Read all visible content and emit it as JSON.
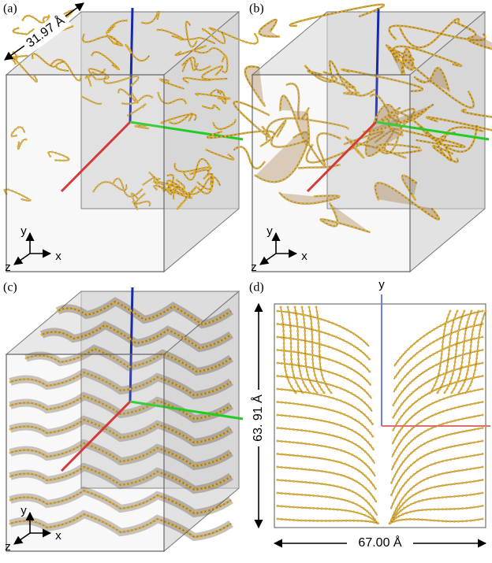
{
  "panels": [
    {
      "label": "(a)",
      "dimension": "31.97 Å",
      "axes": {
        "x": "x",
        "y": "y",
        "z": "z"
      }
    },
    {
      "label": "(b)",
      "axes": {
        "x": "x",
        "y": "y",
        "z": "z"
      }
    },
    {
      "label": "(c)",
      "axes": {
        "x": "x",
        "y": "y",
        "z": "z"
      }
    },
    {
      "label": "(d)",
      "axis_label": "y",
      "height": "63. 91 Å",
      "width": "67.00 Å"
    }
  ]
}
